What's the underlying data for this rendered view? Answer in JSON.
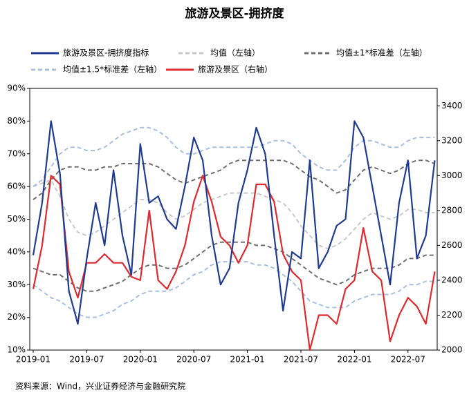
{
  "chart_data": {
    "type": "line",
    "title": "旅游及景区-拥挤度",
    "source": "资料来源：Wind，兴业证券经济与金融研究院",
    "categories": [
      "2019-01",
      null,
      null,
      null,
      null,
      null,
      "2019-07",
      null,
      null,
      null,
      null,
      null,
      "2020-01",
      null,
      null,
      null,
      null,
      null,
      "2020-07",
      null,
      null,
      null,
      null,
      null,
      "2021-01",
      null,
      null,
      null,
      null,
      null,
      "2021-07",
      null,
      null,
      null,
      null,
      null,
      "2022-01",
      null,
      null,
      null,
      null,
      null,
      "2022-07",
      null,
      null,
      null
    ],
    "ylim": [
      10,
      90
    ],
    "yticks": [
      {
        "value": 10,
        "label": "10%"
      },
      {
        "value": 20,
        "label": "20%"
      },
      {
        "value": 30,
        "label": "30%"
      },
      {
        "value": 40,
        "label": "40%"
      },
      {
        "value": 50,
        "label": "50%"
      },
      {
        "value": 60,
        "label": "60%"
      },
      {
        "value": 70,
        "label": "70%"
      },
      {
        "value": 80,
        "label": "80%"
      },
      {
        "value": 90,
        "label": "90%"
      }
    ],
    "y2lim": [
      2000,
      3500
    ],
    "y2ticks": [
      2000,
      2200,
      2400,
      2600,
      2800,
      3000,
      3200,
      3400
    ],
    "series": [
      {
        "name": "旅游及景区-拥挤度指标",
        "color": "#1f3a93",
        "style": "solid",
        "values": [
          39,
          55,
          80,
          64,
          28,
          18,
          38,
          55,
          42,
          65,
          45,
          33,
          73,
          55,
          57,
          50,
          47,
          60,
          75,
          68,
          45,
          30,
          35,
          55,
          65,
          78,
          70,
          45,
          22,
          40,
          38,
          68,
          35,
          40,
          48,
          50,
          80,
          75,
          60,
          45,
          30,
          55,
          68,
          38,
          45,
          68
        ]
      },
      {
        "name": "均值（左轴）",
        "color": "#c8c8c8",
        "style": "dashed",
        "values": [
          60,
          61,
          62,
          57,
          50,
          46,
          45,
          46,
          48,
          50,
          52,
          54,
          56,
          56,
          55,
          52,
          50,
          51,
          53,
          55,
          56,
          57,
          58,
          58,
          58,
          58,
          57,
          56,
          55,
          52,
          48,
          45,
          42,
          41,
          42,
          44,
          47,
          50,
          52,
          51,
          50,
          51,
          53,
          53,
          52,
          52
        ]
      },
      {
        "name": "均值±1*标准差（左轴）",
        "color": "#6e6e6e",
        "style": "dashed",
        "values": [
          56,
          58,
          62,
          65,
          66,
          66,
          65,
          65,
          66,
          66,
          67,
          67,
          67,
          67,
          66,
          64,
          62,
          61,
          62,
          63,
          64,
          65,
          67,
          68,
          68,
          68,
          68,
          68,
          68,
          67,
          65,
          63,
          62,
          60,
          58,
          59,
          62,
          65,
          66,
          65,
          64,
          65,
          67,
          68,
          68,
          67
        ],
        "lower": [
          35,
          34,
          33,
          33,
          31,
          29,
          28,
          28,
          29,
          30,
          31,
          33,
          35,
          36,
          36,
          35,
          35,
          36,
          38,
          40,
          42,
          43,
          43,
          43,
          43,
          42,
          42,
          41,
          40,
          38,
          36,
          34,
          32,
          31,
          30,
          31,
          33,
          34,
          35,
          35,
          35,
          36,
          38,
          38,
          39,
          39
        ]
      },
      {
        "name": "均值±1.5*标准差（左轴）",
        "color": "#a9bfe0",
        "style": "dashed",
        "values": [
          60,
          62,
          66,
          70,
          72,
          72,
          71,
          71,
          72,
          74,
          76,
          77,
          78,
          78,
          77,
          75,
          72,
          70,
          70,
          71,
          72,
          72,
          72,
          72,
          72,
          72,
          73,
          74,
          74,
          73,
          70,
          68,
          66,
          65,
          65,
          68,
          72,
          74,
          74,
          73,
          72,
          72,
          74,
          75,
          75,
          75
        ],
        "lower": [
          30,
          28,
          26,
          25,
          23,
          21,
          20,
          20,
          21,
          22,
          24,
          25,
          27,
          28,
          28,
          28,
          29,
          31,
          33,
          34,
          36,
          37,
          37,
          37,
          37,
          36,
          36,
          35,
          33,
          31,
          28,
          25,
          24,
          23,
          23,
          23,
          25,
          26,
          27,
          27,
          27,
          28,
          30,
          30,
          31,
          31
        ]
      },
      {
        "name": "旅游及景区（右轴）",
        "color": "#e0282e",
        "style": "solid",
        "axis": "y2",
        "values": [
          2350,
          2600,
          3000,
          2950,
          2450,
          2300,
          2500,
          2500,
          2550,
          2500,
          2500,
          2420,
          2400,
          2800,
          2400,
          2350,
          2450,
          2600,
          2850,
          3000,
          2850,
          2650,
          2600,
          2500,
          2600,
          2950,
          2950,
          2850,
          2550,
          2450,
          2400,
          2000,
          2200,
          2200,
          2150,
          2350,
          2400,
          2700,
          2450,
          2400,
          2050,
          2200,
          2300,
          2250,
          2150,
          2450
        ]
      }
    ]
  }
}
